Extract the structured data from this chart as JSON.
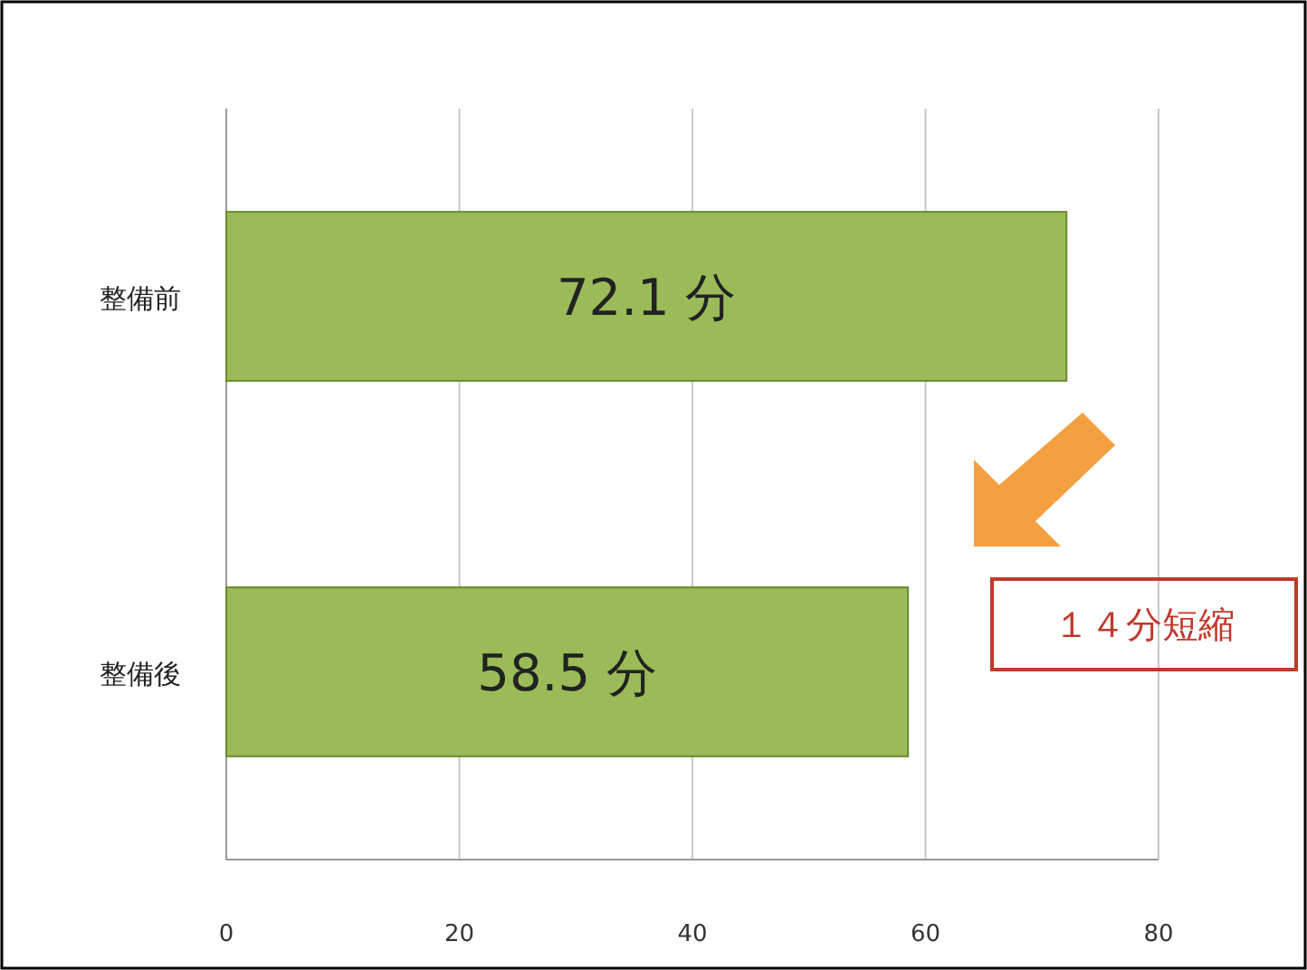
{
  "chart_data": {
    "type": "bar",
    "orientation": "horizontal",
    "categories": [
      "整備前",
      "整備後"
    ],
    "values": [
      72.1,
      58.5
    ],
    "value_labels": [
      "72.1 分",
      "58.5 分"
    ],
    "color": "#9bbb59",
    "xlim": [
      0,
      80
    ],
    "xticks": [
      0,
      20,
      40,
      60,
      80
    ],
    "grid": "x",
    "annotations": [
      "１４分短縮"
    ]
  }
}
